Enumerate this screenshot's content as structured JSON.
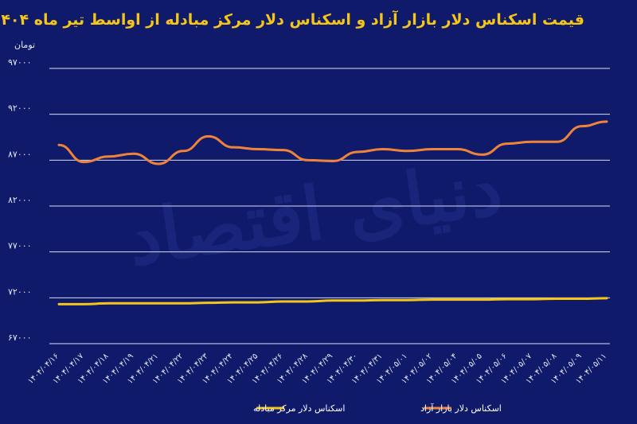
{
  "chart_data": {
    "type": "line",
    "title": "قیمت اسکناس دلار بازار آزاد و اسکناس دلار مرکز مبادله از اواسط تیر ماه ۱۴۰۴",
    "ylabel": "تومان",
    "ylim": [
      67000,
      97000
    ],
    "yticks": [
      97000,
      92000,
      87000,
      82000,
      77000,
      72000,
      67000
    ],
    "ytick_labels": [
      "۹۷۰۰۰",
      "۹۲۰۰۰",
      "۸۷۰۰۰",
      "۸۲۰۰۰",
      "۷۷۰۰۰",
      "۷۲۰۰۰",
      "۶۷۰۰۰"
    ],
    "x": [
      "۱۴۰۴/۰۴/۱۶",
      "۱۴۰۴/۰۴/۱۷",
      "۱۴۰۴/۰۴/۱۸",
      "۱۴۰۴/۰۴/۱۹",
      "۱۴۰۴/۰۴/۲۱",
      "۱۴۰۴/۰۴/۲۲",
      "۱۴۰۴/۰۴/۲۳",
      "۱۴۰۴/۰۴/۲۴",
      "۱۴۰۴/۰۴/۲۵",
      "۱۴۰۴/۰۴/۲۶",
      "۱۴۰۴/۰۴/۲۸",
      "۱۴۰۴/۰۴/۲۹",
      "۱۴۰۴/۰۴/۳۰",
      "۱۴۰۴/۰۴/۳۱",
      "۱۴۰۴/۰۵/۰۱",
      "۱۴۰۴/۰۵/۰۲",
      "۱۴۰۴/۰۵/۰۴",
      "۱۴۰۴/۰۵/۰۵",
      "۱۴۰۴/۰۵/۰۶",
      "۱۴۰۴/۰۵/۰۷",
      "۱۴۰۴/۰۵/۰۸",
      "۱۴۰۴/۰۵/۰۹",
      "۱۴۰۴/۰۵/۱۱"
    ],
    "grid": true,
    "legend_position": "bottom",
    "series": [
      {
        "name": "اسکناس دلار بازار آزاد",
        "color": "#f0833a",
        "values": [
          88650,
          86800,
          87400,
          87700,
          86600,
          88000,
          89600,
          88400,
          88200,
          88100,
          87000,
          86900,
          87900,
          88200,
          88000,
          88200,
          88200,
          87600,
          88800,
          89000,
          89000,
          90700,
          91200
        ]
      },
      {
        "name": "اسکناس دلار مرکز مبادله",
        "color": "#f5c518",
        "values": [
          71300,
          71300,
          71400,
          71400,
          71400,
          71400,
          71450,
          71500,
          71500,
          71600,
          71600,
          71700,
          71700,
          71750,
          71750,
          71800,
          71800,
          71800,
          71850,
          71850,
          71900,
          71900,
          71950
        ]
      }
    ]
  },
  "watermark": "دنیای اقتصاد"
}
